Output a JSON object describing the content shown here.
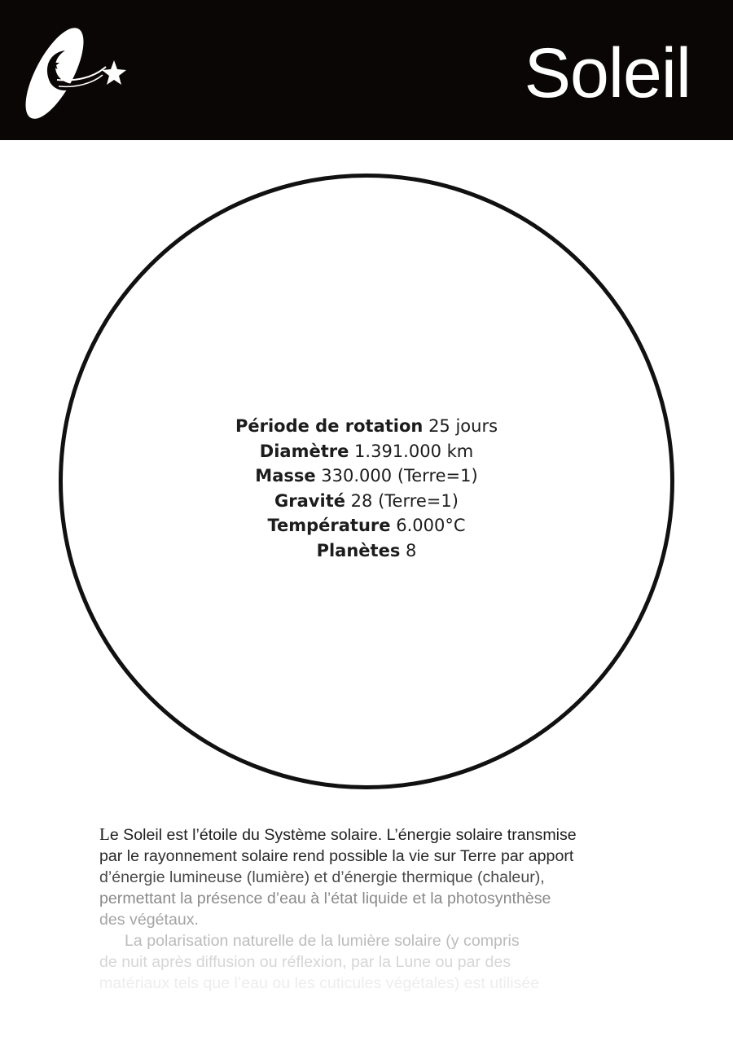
{
  "header": {
    "title": "Soleil",
    "logo_icon": "comet-moon-star-logo-icon",
    "background": "#0b0606"
  },
  "facts": [
    {
      "label": "Période de rotation",
      "value": "25 jours"
    },
    {
      "label": "Diamètre",
      "value": "1.391.000 km"
    },
    {
      "label": "Masse",
      "value": "330.000 (Terre=1)"
    },
    {
      "label": "Gravité",
      "value": "28 (Terre=1)"
    },
    {
      "label": "Température",
      "value": "6.000°C"
    },
    {
      "label": "Planètes",
      "value": "8"
    }
  ],
  "description": {
    "lines": [
      {
        "first": "L",
        "rest": "e Soleil est l’étoile du Système solaire. L’énergie solaire transmise"
      },
      {
        "text": "par le rayonnement solaire rend possible la vie sur Terre par apport"
      },
      {
        "text": "d’énergie lumineuse (lumière) et d’énergie thermique (chaleur),"
      },
      {
        "text": "permettant la présence d’eau à l’état liquide et la photosynthèse"
      },
      {
        "text": "des végétaux."
      },
      {
        "text": "La polarisation naturelle de la lumière solaire (y compris"
      },
      {
        "text": "de nuit après diffusion ou réflexion, par la Lune ou par des"
      },
      {
        "text": "matériaux tels que l’eau ou les cuticules végétales) est utilisée"
      }
    ]
  }
}
